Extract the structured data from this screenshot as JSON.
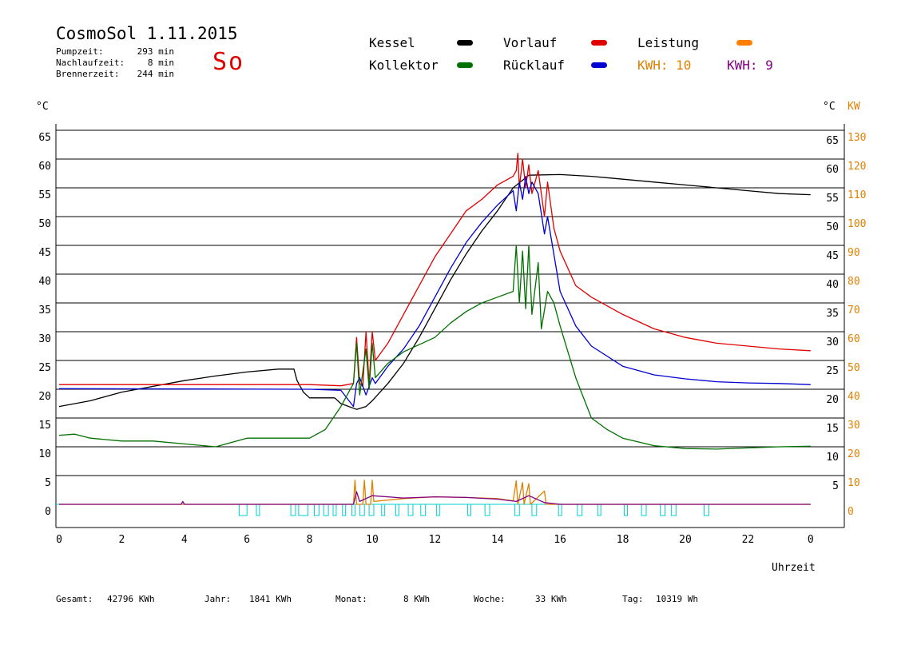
{
  "header": {
    "title": "CosmoSol 1.11.2015",
    "day": "So",
    "stats": [
      {
        "label": "Pumpzeit:",
        "value": "293 min"
      },
      {
        "label": "Nachlaufzeit:",
        "value": "8 min"
      },
      {
        "label": "Brennerzeit:",
        "value": "244 min"
      }
    ]
  },
  "legend": {
    "items": [
      {
        "label": "Kessel",
        "color": "#000000"
      },
      {
        "label": "Vorlauf",
        "color": "#e00000"
      },
      {
        "label": "Leistung",
        "color": "#ff8000"
      },
      {
        "label": "Kollektor",
        "color": "#007000"
      },
      {
        "label": "Rücklauf",
        "color": "#0000d0"
      }
    ],
    "kwh1": "KWH: 10",
    "kwh1_color": "#e08000",
    "kwh2": "KWH: 9",
    "kwh2_color": "#800080"
  },
  "footer": {
    "gesamt_label": "Gesamt:",
    "gesamt_value": "42796 KWh",
    "jahr_label": "Jahr:",
    "jahr_value": "1841 KWh",
    "monat_label": "Monat:",
    "monat_value": "8 KWh",
    "woche_label": "Woche:",
    "woche_value": "33 KWh",
    "tag_label": "Tag:",
    "tag_value": "10319 Wh"
  },
  "chart_data": {
    "type": "line",
    "xlabel": "Uhrzeit",
    "ylabel_left": "°C",
    "ylabel_right_temp": "°C",
    "ylabel_right_power": "KW",
    "xlim": [
      0,
      24
    ],
    "ylim": [
      0,
      65
    ],
    "xticks": [
      "0",
      "2",
      "4",
      "6",
      "8",
      "10",
      "12",
      "14",
      "16",
      "18",
      "20",
      "22",
      "0"
    ],
    "yticks": [
      0,
      5,
      10,
      15,
      20,
      25,
      30,
      35,
      40,
      45,
      50,
      55,
      60,
      65
    ],
    "yticks_left": [
      "0",
      "5",
      "10",
      "15",
      "20",
      "25",
      "30",
      "35",
      "40",
      "45",
      "50",
      "55",
      "60",
      "65"
    ],
    "yticks_right_temp": [
      "5",
      "10",
      "15",
      "20",
      "25",
      "30",
      "35",
      "40",
      "45",
      "50",
      "55",
      "60",
      "65"
    ],
    "yticks_right_power": [
      "0",
      "10",
      "20",
      "30",
      "40",
      "50",
      "60",
      "70",
      "80",
      "90",
      "100",
      "110",
      "120",
      "130"
    ],
    "power_color": "#e08000",
    "grid": true,
    "series": [
      {
        "name": "Kessel",
        "color": "#000000",
        "points": [
          [
            0,
            17
          ],
          [
            1,
            18
          ],
          [
            2,
            19.5
          ],
          [
            3,
            20.5
          ],
          [
            4,
            21.5
          ],
          [
            5,
            22.3
          ],
          [
            6,
            23
          ],
          [
            7,
            23.5
          ],
          [
            7.5,
            23.5
          ],
          [
            7.6,
            21.5
          ],
          [
            7.8,
            19.5
          ],
          [
            8,
            18.5
          ],
          [
            8.8,
            18.5
          ],
          [
            9,
            17.5
          ],
          [
            9.5,
            16.5
          ],
          [
            9.8,
            17
          ],
          [
            10,
            18
          ],
          [
            10.5,
            21
          ],
          [
            11,
            24.5
          ],
          [
            11.5,
            29
          ],
          [
            12,
            34
          ],
          [
            12.5,
            39
          ],
          [
            13,
            43.5
          ],
          [
            13.5,
            47.5
          ],
          [
            14,
            51
          ],
          [
            14.5,
            55
          ],
          [
            15,
            57.2
          ],
          [
            16,
            57.3
          ],
          [
            17,
            57
          ],
          [
            18,
            56.5
          ],
          [
            19,
            56
          ],
          [
            20,
            55.5
          ],
          [
            21,
            55
          ],
          [
            22,
            54.5
          ],
          [
            23,
            54
          ],
          [
            24,
            53.8
          ]
        ]
      },
      {
        "name": "Vorlauf",
        "color": "#e00000",
        "points": [
          [
            0,
            20.8
          ],
          [
            7,
            20.8
          ],
          [
            8,
            20.8
          ],
          [
            9,
            20.6
          ],
          [
            9.4,
            21
          ],
          [
            9.5,
            29
          ],
          [
            9.6,
            21
          ],
          [
            9.7,
            20.5
          ],
          [
            9.8,
            30
          ],
          [
            9.9,
            21
          ],
          [
            10,
            30
          ],
          [
            10.1,
            25
          ],
          [
            10.5,
            28
          ],
          [
            11,
            33
          ],
          [
            11.5,
            38
          ],
          [
            12,
            43
          ],
          [
            12.5,
            47
          ],
          [
            13,
            51
          ],
          [
            13.5,
            53
          ],
          [
            14,
            55.5
          ],
          [
            14.5,
            57
          ],
          [
            14.6,
            58
          ],
          [
            14.65,
            61
          ],
          [
            14.7,
            55
          ],
          [
            14.8,
            60
          ],
          [
            14.9,
            55
          ],
          [
            15,
            59
          ],
          [
            15.1,
            54
          ],
          [
            15.3,
            58
          ],
          [
            15.5,
            50
          ],
          [
            15.6,
            56
          ],
          [
            15.8,
            48
          ],
          [
            16,
            44
          ],
          [
            16.5,
            38
          ],
          [
            17,
            36
          ],
          [
            18,
            33
          ],
          [
            19,
            30.5
          ],
          [
            20,
            29
          ],
          [
            21,
            28
          ],
          [
            22,
            27.5
          ],
          [
            23,
            27
          ],
          [
            24,
            26.7
          ]
        ]
      },
      {
        "name": "Rücklauf",
        "color": "#0000d0",
        "points": [
          [
            0,
            20.1
          ],
          [
            8,
            20
          ],
          [
            9,
            19.8
          ],
          [
            9.4,
            17
          ],
          [
            9.5,
            21
          ],
          [
            9.6,
            22
          ],
          [
            9.8,
            19
          ],
          [
            10,
            22
          ],
          [
            10.1,
            21
          ],
          [
            10.5,
            24
          ],
          [
            11,
            27
          ],
          [
            11.5,
            31
          ],
          [
            12,
            36
          ],
          [
            12.5,
            41
          ],
          [
            13,
            45.5
          ],
          [
            13.5,
            49
          ],
          [
            14,
            52
          ],
          [
            14.5,
            54.5
          ],
          [
            14.6,
            51
          ],
          [
            14.7,
            56
          ],
          [
            14.8,
            53
          ],
          [
            14.9,
            57
          ],
          [
            15,
            54
          ],
          [
            15.1,
            56
          ],
          [
            15.3,
            54
          ],
          [
            15.5,
            47
          ],
          [
            15.6,
            50
          ],
          [
            16,
            37
          ],
          [
            16.5,
            31
          ],
          [
            17,
            27.5
          ],
          [
            18,
            24
          ],
          [
            19,
            22.5
          ],
          [
            20,
            21.8
          ],
          [
            21,
            21.3
          ],
          [
            22,
            21.1
          ],
          [
            23,
            21
          ],
          [
            24,
            20.8
          ]
        ]
      },
      {
        "name": "Kollektor",
        "color": "#007000",
        "points": [
          [
            0,
            12
          ],
          [
            0.5,
            12.2
          ],
          [
            1,
            11.5
          ],
          [
            2,
            11
          ],
          [
            3,
            11
          ],
          [
            4,
            10.5
          ],
          [
            5,
            10
          ],
          [
            6,
            11.5
          ],
          [
            7,
            11.5
          ],
          [
            8,
            11.5
          ],
          [
            8.5,
            13
          ],
          [
            9,
            17
          ],
          [
            9.4,
            21
          ],
          [
            9.5,
            28
          ],
          [
            9.6,
            19
          ],
          [
            9.7,
            23
          ],
          [
            9.8,
            27
          ],
          [
            9.9,
            20
          ],
          [
            10,
            28
          ],
          [
            10.1,
            22
          ],
          [
            10.5,
            24.5
          ],
          [
            11,
            26.5
          ],
          [
            12,
            29
          ],
          [
            12.5,
            31.5
          ],
          [
            13,
            33.5
          ],
          [
            13.5,
            35
          ],
          [
            14,
            36
          ],
          [
            14.5,
            37
          ],
          [
            14.6,
            45
          ],
          [
            14.7,
            35
          ],
          [
            14.8,
            44
          ],
          [
            14.9,
            34
          ],
          [
            15,
            45
          ],
          [
            15.1,
            33
          ],
          [
            15.3,
            42
          ],
          [
            15.4,
            30.5
          ],
          [
            15.6,
            37
          ],
          [
            15.8,
            35
          ],
          [
            16,
            31
          ],
          [
            16.5,
            22
          ],
          [
            17,
            15
          ],
          [
            17.5,
            13
          ],
          [
            18,
            11.5
          ],
          [
            19,
            10.2
          ],
          [
            20,
            9.7
          ],
          [
            21,
            9.6
          ],
          [
            22,
            9.8
          ],
          [
            23,
            10
          ],
          [
            24,
            10.1
          ]
        ]
      },
      {
        "name": "Leistung",
        "color": "#e08000",
        "points": [
          [
            0,
            0
          ],
          [
            9.4,
            0
          ],
          [
            9.45,
            4.2
          ],
          [
            9.5,
            0
          ],
          [
            9.7,
            0
          ],
          [
            9.75,
            4.2
          ],
          [
            9.8,
            0
          ],
          [
            9.95,
            0
          ],
          [
            10,
            4.2
          ],
          [
            10.05,
            0.5
          ],
          [
            11,
            1
          ],
          [
            12,
            1.3
          ],
          [
            13,
            1.2
          ],
          [
            14,
            1
          ],
          [
            14.5,
            0.6
          ],
          [
            14.6,
            4.1
          ],
          [
            14.65,
            0
          ],
          [
            14.8,
            3.8
          ],
          [
            14.85,
            0
          ],
          [
            15,
            3.6
          ],
          [
            15.05,
            0
          ],
          [
            15.5,
            2.3
          ],
          [
            15.55,
            0
          ],
          [
            16,
            0
          ],
          [
            24,
            0
          ]
        ]
      },
      {
        "name": "KWH 9",
        "color": "#800080",
        "points": [
          [
            0,
            0
          ],
          [
            3.9,
            0
          ],
          [
            3.95,
            0.5
          ],
          [
            4,
            0
          ],
          [
            9.4,
            0
          ],
          [
            9.5,
            2.2
          ],
          [
            9.6,
            0.5
          ],
          [
            10,
            1.5
          ],
          [
            11,
            1.1
          ],
          [
            12,
            1.3
          ],
          [
            13,
            1.2
          ],
          [
            14,
            0.9
          ],
          [
            14.6,
            0.5
          ],
          [
            15,
            1.5
          ],
          [
            15.5,
            0.3
          ],
          [
            16,
            0
          ],
          [
            24,
            0
          ]
        ]
      }
    ],
    "pump_pulses": [
      [
        5.75,
        6.0
      ],
      [
        6.3,
        6.4
      ],
      [
        7.4,
        7.55
      ],
      [
        7.65,
        7.95
      ],
      [
        8.15,
        8.3
      ],
      [
        8.45,
        8.6
      ],
      [
        8.75,
        8.85
      ],
      [
        9.05,
        9.15
      ],
      [
        9.35,
        9.45
      ],
      [
        9.6,
        9.75
      ],
      [
        9.9,
        10.05
      ],
      [
        10.3,
        10.4
      ],
      [
        10.75,
        10.85
      ],
      [
        11.15,
        11.3
      ],
      [
        11.55,
        11.7
      ],
      [
        12.05,
        12.15
      ],
      [
        13.05,
        13.15
      ],
      [
        13.6,
        13.75
      ],
      [
        14.55,
        14.7
      ],
      [
        15.1,
        15.25
      ],
      [
        15.95,
        16.05
      ],
      [
        16.55,
        16.7
      ],
      [
        17.2,
        17.3
      ],
      [
        18.05,
        18.15
      ],
      [
        18.6,
        18.75
      ],
      [
        19.2,
        19.35
      ],
      [
        19.55,
        19.7
      ],
      [
        20.6,
        20.75
      ]
    ],
    "pump_color": "#00d0d0"
  }
}
